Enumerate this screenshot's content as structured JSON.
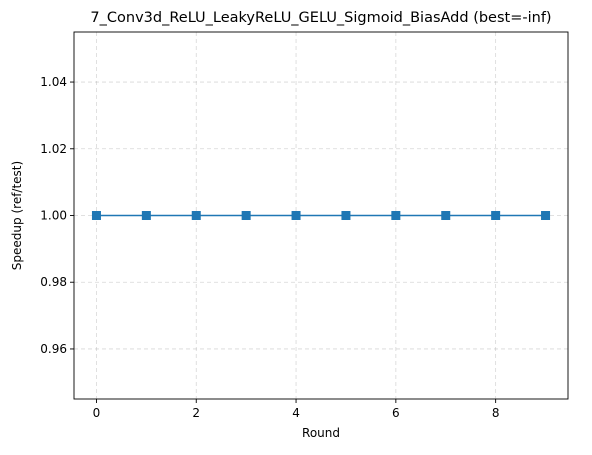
{
  "chart_data": {
    "type": "line",
    "title": "7_Conv3d_ReLU_LeakyReLU_GELU_Sigmoid_BiasAdd (best=-inf)",
    "xlabel": "Round",
    "ylabel": "Speedup (ref/test)",
    "x": [
      0,
      1,
      2,
      3,
      4,
      5,
      6,
      7,
      8,
      9
    ],
    "series": [
      {
        "values": [
          1.0,
          1.0,
          1.0,
          1.0,
          1.0,
          1.0,
          1.0,
          1.0,
          1.0,
          1.0
        ]
      }
    ],
    "xlim": [
      -0.45,
      9.45
    ],
    "ylim": [
      0.945,
      1.055
    ],
    "xticks": [
      0,
      2,
      4,
      6,
      8
    ],
    "xtick_labels": [
      "0",
      "2",
      "4",
      "6",
      "8"
    ],
    "yticks": [
      0.96,
      0.98,
      1.0,
      1.02,
      1.04
    ],
    "ytick_labels": [
      "0.96",
      "0.98",
      "1.00",
      "1.02",
      "1.04"
    ],
    "grid": true,
    "line_color": "#1f77b4",
    "marker": "square"
  }
}
